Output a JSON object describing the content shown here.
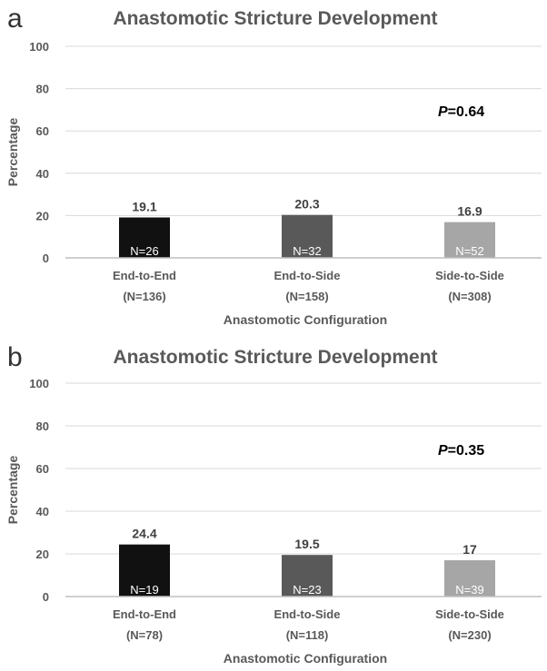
{
  "chart_data": [
    {
      "panel": "a",
      "type": "bar",
      "title": "Anastomotic Stricture Development",
      "xlabel": "Anastomotic Configuration",
      "ylabel": "Percentage",
      "ylim": [
        0,
        100
      ],
      "yticks": [
        0,
        20,
        40,
        60,
        80,
        100
      ],
      "categories": [
        {
          "line1": "End-to-End",
          "line2": "(N=136)"
        },
        {
          "line1": "End-to-Side",
          "line2": "(N=158)"
        },
        {
          "line1": "Side-to-Side",
          "line2": "(N=308)"
        }
      ],
      "values": [
        19.1,
        20.3,
        16.9
      ],
      "value_labels": [
        "19.1",
        "20.3",
        "16.9"
      ],
      "bar_labels": [
        "N=26",
        "N=32",
        "N=52"
      ],
      "bar_colors": [
        "#111111",
        "#595959",
        "#a6a6a6"
      ],
      "p_value": {
        "symbol": "P",
        "text": "=0.64"
      },
      "grid": true
    },
    {
      "panel": "b",
      "type": "bar",
      "title": "Anastomotic Stricture Development",
      "xlabel": "Anastomotic Configuration",
      "ylabel": "Percentage",
      "ylim": [
        0,
        100
      ],
      "yticks": [
        0,
        20,
        40,
        60,
        80,
        100
      ],
      "categories": [
        {
          "line1": "End-to-End",
          "line2": "(N=78)"
        },
        {
          "line1": "End-to-Side",
          "line2": "(N=118)"
        },
        {
          "line1": "Side-to-Side",
          "line2": "(N=230)"
        }
      ],
      "values": [
        24.4,
        19.5,
        17
      ],
      "value_labels": [
        "24.4",
        "19.5",
        "17"
      ],
      "bar_labels": [
        "N=19",
        "N=23",
        "N=39"
      ],
      "bar_colors": [
        "#111111",
        "#595959",
        "#a6a6a6"
      ],
      "p_value": {
        "symbol": "P",
        "text": "=0.35"
      },
      "grid": true
    }
  ]
}
